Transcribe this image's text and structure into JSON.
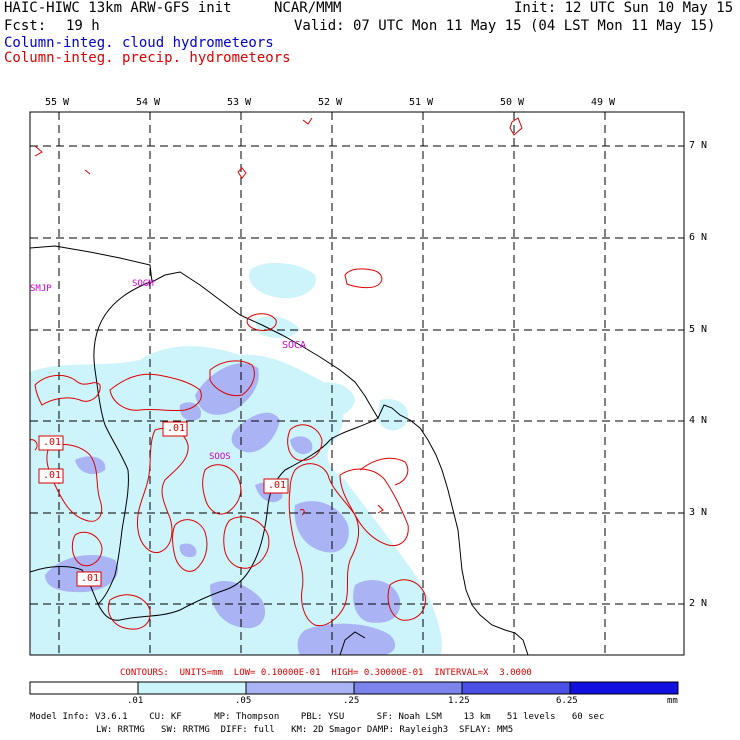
{
  "header": {
    "model": "HAIC-HIWC 13km ARW-GFS init",
    "org": "NCAR/MMM",
    "init": "Init: 12 UTC Sun 10 May 15",
    "fcst_label": "Fcst:",
    "fcst_value": "19 h",
    "valid": "Valid: 07 UTC Mon 11 May 15 (04 LST Mon 11 May 15)",
    "field1": "Column-integ. cloud hydrometeors",
    "field2": "Column-integ. precip. hydrometeors"
  },
  "colors": {
    "field1": "#0000cc",
    "field2": "#dd0000",
    "shade1": "#ccf4fa",
    "shade2": "#aab4f4",
    "shade3": "#7a84ea",
    "shade4": "#4a50e6",
    "shade5": "#1010e0"
  },
  "axes": {
    "lon_labels": [
      "55 W",
      "54 W",
      "53 W",
      "52 W",
      "51 W",
      "50 W",
      "49 W"
    ],
    "lat_labels": [
      "7 N",
      "6 N",
      "5 N",
      "4 N",
      "3 N",
      "2 N"
    ]
  },
  "stations": [
    "SMJP",
    "SOGM",
    "SOCA",
    "SOOS"
  ],
  "contour_labels": [
    ".01",
    ".01",
    ".01",
    ".01",
    ".01"
  ],
  "contours_line": "CONTOURS:  UNITS=mm  LOW= 0.10000E-01  HIGH= 0.30000E-01  INTERVAL=X  3.0000",
  "colorbar": {
    "ticks": [
      ".01",
      ".05",
      ".25",
      "1.25",
      "6.25"
    ],
    "unit": "mm"
  },
  "footer": {
    "line1": "Model Info: V3.6.1    CU: KF      MP: Thompson    PBL: YSU      SF: Noah LSM    13 km   51 levels   60 sec",
    "line2": "LW: RRTMG   SW: RRTMG  DIFF: full   KM: 2D Smagor DAMP: Rayleigh3  SFLAY: MM5"
  }
}
